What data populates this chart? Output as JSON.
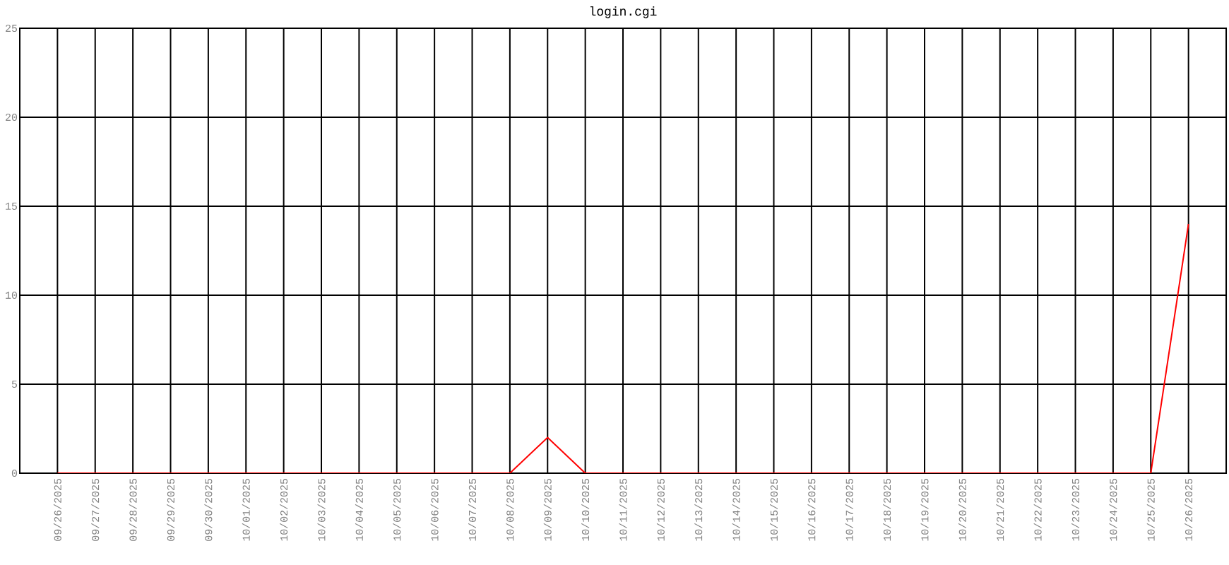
{
  "chart_data": {
    "type": "line",
    "title": "login.cgi",
    "categories": [
      "09/26/2025",
      "09/27/2025",
      "09/28/2025",
      "09/29/2025",
      "09/30/2025",
      "10/01/2025",
      "10/02/2025",
      "10/03/2025",
      "10/04/2025",
      "10/05/2025",
      "10/06/2025",
      "10/07/2025",
      "10/08/2025",
      "10/09/2025",
      "10/10/2025",
      "10/11/2025",
      "10/12/2025",
      "10/13/2025",
      "10/14/2025",
      "10/15/2025",
      "10/16/2025",
      "10/17/2025",
      "10/18/2025",
      "10/19/2025",
      "10/20/2025",
      "10/21/2025",
      "10/22/2025",
      "10/23/2025",
      "10/24/2025",
      "10/25/2025",
      "10/26/2025"
    ],
    "series": [
      {
        "color": "#ff0000",
        "values": [
          0,
          0,
          0,
          0,
          0,
          0,
          0,
          0,
          0,
          0,
          0,
          0,
          0,
          2,
          0,
          0,
          0,
          0,
          0,
          0,
          0,
          0,
          0,
          0,
          0,
          0,
          0,
          0,
          0,
          0,
          14
        ]
      }
    ],
    "ylim": [
      0,
      25
    ],
    "yticks": [
      0,
      5,
      10,
      15,
      20,
      25
    ],
    "grid": true,
    "marker": "none",
    "line_style": "solid"
  }
}
